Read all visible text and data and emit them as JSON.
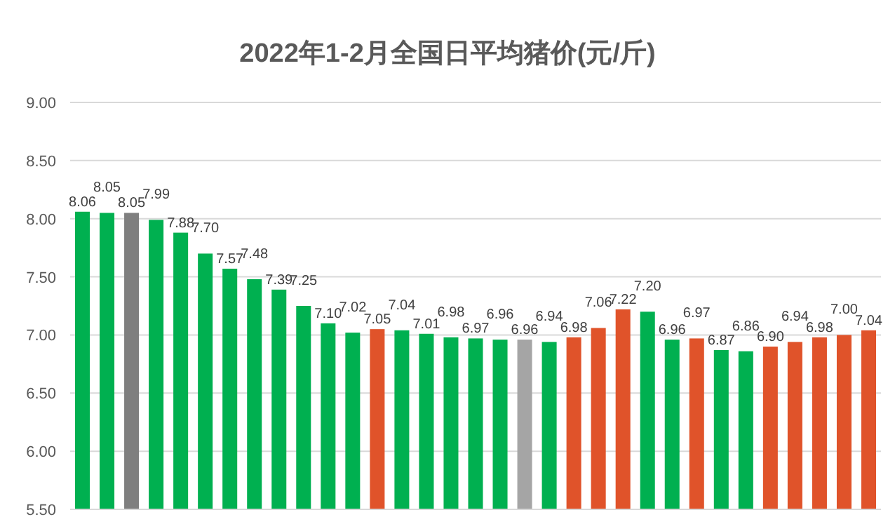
{
  "chart_data": {
    "type": "bar",
    "title": "2022年1-2月全国日平均猪价(元/斤)",
    "categories": [
      null,
      null,
      null,
      null,
      null,
      null,
      null,
      null,
      null,
      null,
      null,
      null,
      null,
      null,
      null,
      null,
      null,
      null,
      null,
      null,
      null,
      null,
      null,
      null,
      null,
      null,
      null,
      null,
      null,
      null,
      null,
      null,
      null
    ],
    "values": [
      8.06,
      8.05,
      8.05,
      7.99,
      7.88,
      7.7,
      7.57,
      7.48,
      7.39,
      7.25,
      7.1,
      7.02,
      7.05,
      7.04,
      7.01,
      6.98,
      6.97,
      6.96,
      6.96,
      6.94,
      6.98,
      7.06,
      7.22,
      7.2,
      6.96,
      6.97,
      6.87,
      6.86,
      6.9,
      6.94,
      6.98,
      7.0,
      7.04
    ],
    "colors": [
      "#00b050",
      "#00b050",
      "#7f7f7f",
      "#00b050",
      "#00b050",
      "#00b050",
      "#00b050",
      "#00b050",
      "#00b050",
      "#00b050",
      "#00b050",
      "#00b050",
      "#e0532a",
      "#00b050",
      "#00b050",
      "#00b050",
      "#00b050",
      "#00b050",
      "#a5a5a5",
      "#00b050",
      "#e0532a",
      "#e0532a",
      "#e0532a",
      "#00b050",
      "#00b050",
      "#e0532a",
      "#00b050",
      "#00b050",
      "#e0532a",
      "#e0532a",
      "#e0532a",
      "#e0532a",
      "#e0532a"
    ],
    "value_labels": [
      "8.06",
      "8.05",
      "8.05",
      "7.99",
      "7.88",
      "7.70",
      "7.57",
      "7.48",
      "7.39",
      "7.25",
      "7.10",
      "7.02",
      "7.05",
      "7.04",
      "7.01",
      "6.98",
      "6.97",
      "6.96",
      "6.96",
      "6.94",
      "6.98",
      "7.06",
      "7.22",
      "7.20",
      "6.96",
      "6.97",
      "6.87",
      "6.86",
      "6.90",
      "6.94",
      "6.98",
      "7.00",
      "7.04"
    ],
    "ylim": [
      5.5,
      9.0
    ],
    "yticks": [
      {
        "value": 5.5,
        "label": "5.50"
      },
      {
        "value": 6.0,
        "label": "6.00"
      },
      {
        "value": 6.5,
        "label": "6.50"
      },
      {
        "value": 7.0,
        "label": "7.00"
      },
      {
        "value": 7.5,
        "label": "7.50"
      },
      {
        "value": 8.0,
        "label": "8.00"
      },
      {
        "value": 8.5,
        "label": "8.50"
      },
      {
        "value": 9.0,
        "label": "9.00"
      }
    ],
    "grid": "y"
  }
}
